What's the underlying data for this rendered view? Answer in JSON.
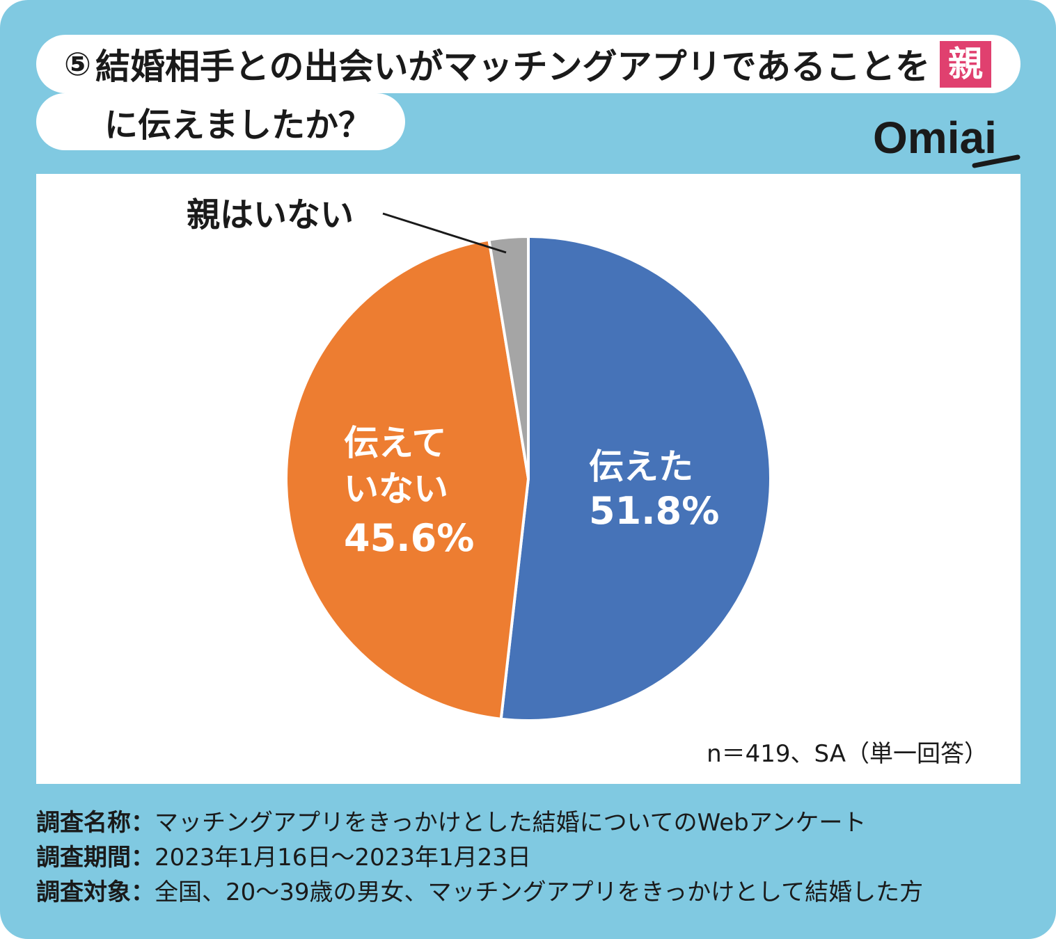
{
  "header": {
    "number": "⑤",
    "title_line1": "結婚相手との出会いがマッチングアプリであることを",
    "highlight": "親",
    "title_line2": "に伝えましたか？"
  },
  "logo": {
    "text": "Omiai"
  },
  "colors": {
    "frame": "#80c9e1",
    "highlight": "#e0406f",
    "told": "#4673b8",
    "not_told": "#ed7d31",
    "no_parents": "#a5a5a5"
  },
  "chart_data": {
    "type": "pie",
    "title": "⑤結婚相手との出会いがマッチングアプリであることを親に伝えましたか？",
    "start": "12 o'clock, clockwise",
    "slices": [
      {
        "label": "伝えた",
        "value": 51.8,
        "display": "51.8%",
        "color": "#4673b8"
      },
      {
        "label": "伝えていない",
        "label_line1": "伝えて",
        "label_line2": "いない",
        "value": 45.6,
        "display": "45.6%",
        "color": "#ed7d31"
      },
      {
        "label": "親はいない",
        "value": 2.6,
        "color": "#a5a5a5"
      }
    ],
    "note": "n＝419、SA（単一回答）"
  },
  "footer": {
    "rows": [
      {
        "label": "調査名称：",
        "value": "マッチングアプリをきっかけとした結婚についてのWebアンケート"
      },
      {
        "label": "調査期間：",
        "value": "2023年1月16日～2023年1月23日"
      },
      {
        "label": "調査対象：",
        "value": "全国、20～39歳の男女、マッチングアプリをきっかけとして結婚した方"
      }
    ]
  }
}
